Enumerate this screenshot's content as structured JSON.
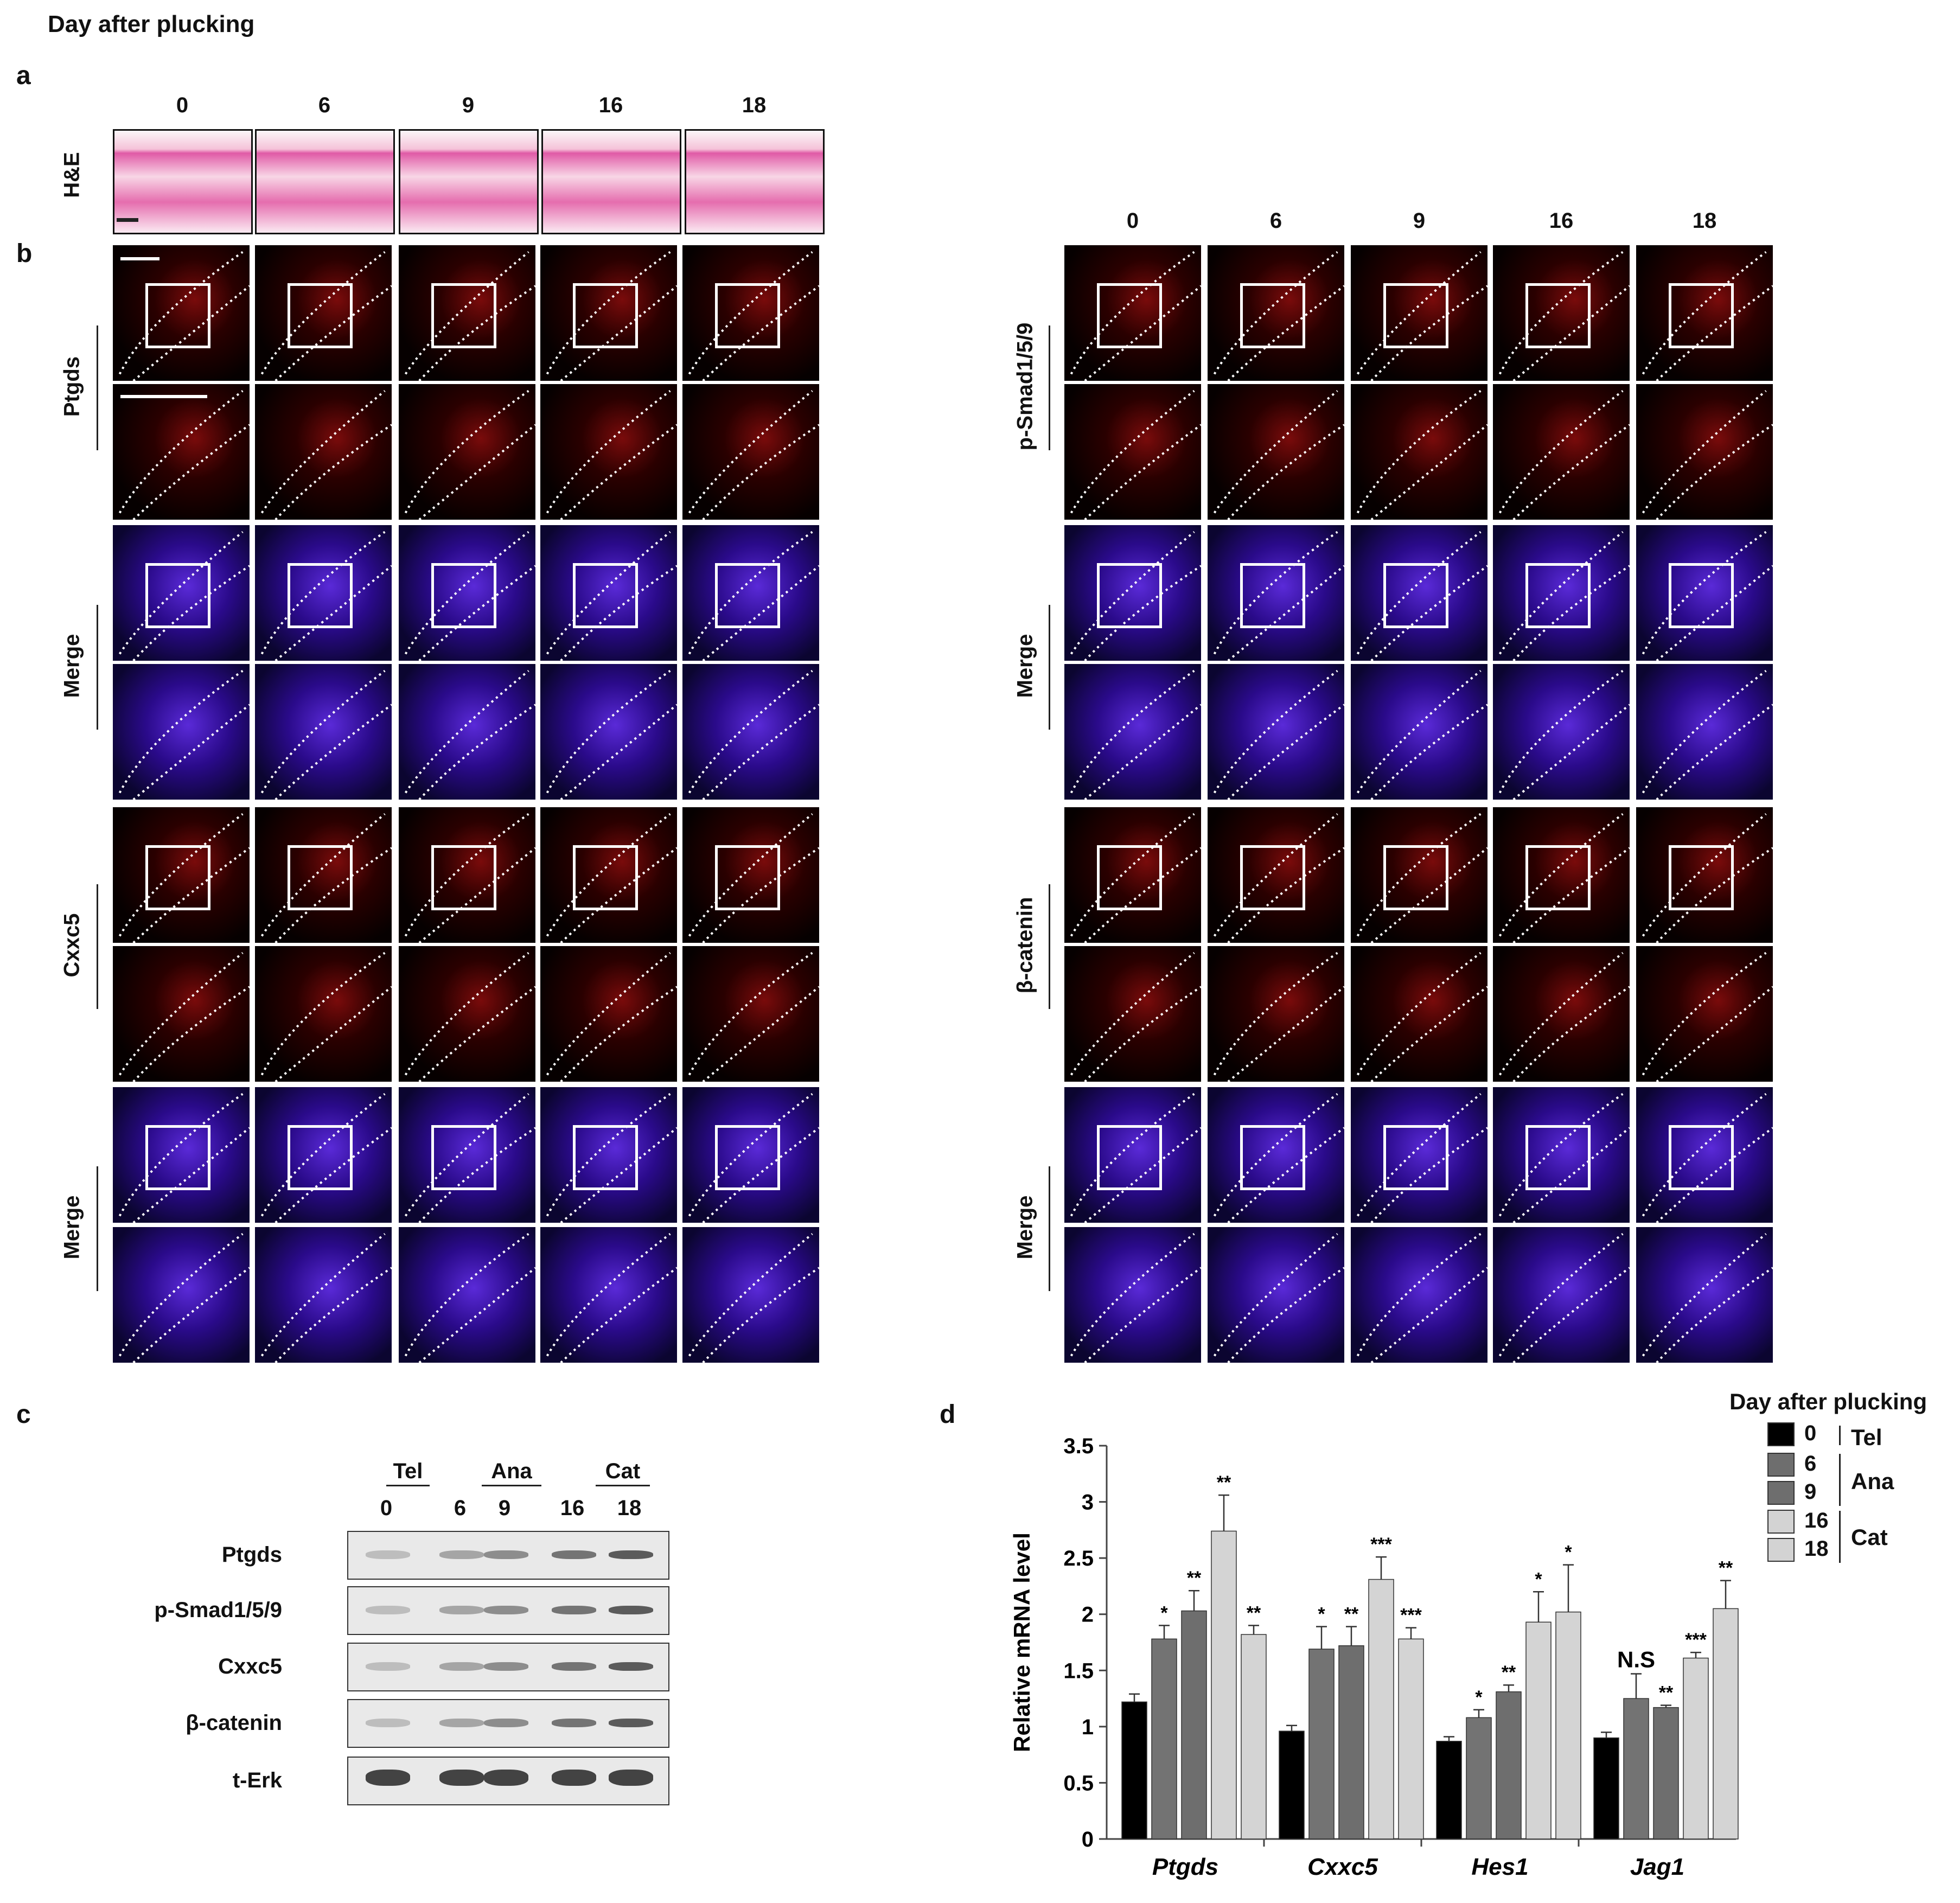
{
  "figure_title": "Day after plucking",
  "panels": {
    "a": {
      "letter": "a",
      "row_label": "H&E",
      "days": [
        "0",
        "6",
        "9",
        "16",
        "18"
      ]
    },
    "b": {
      "letter": "b",
      "days": [
        "0",
        "6",
        "9",
        "16",
        "18"
      ],
      "left_labels": [
        "Ptgds",
        "Merge",
        "Cxxc5",
        "Merge"
      ],
      "right_labels": [
        "p-Smad1/5/9",
        "Merge",
        "β-catenin",
        "Merge"
      ]
    },
    "c": {
      "letter": "c",
      "groups": [
        {
          "name": "Tel"
        },
        {
          "name": "Ana"
        },
        {
          "name": "Cat"
        }
      ],
      "lanes": [
        "0",
        "6",
        "9",
        "16",
        "18"
      ],
      "rows": [
        "Ptgds",
        "p-Smad1/5/9",
        "Cxxc5",
        "β-catenin",
        "t-Erk"
      ]
    },
    "d": {
      "letter": "d",
      "legend_title": "Day after plucking",
      "legend_items": [
        {
          "day": "0",
          "color": "#000000"
        },
        {
          "day": "6",
          "color": "#6e6e6e"
        },
        {
          "day": "9",
          "color": "#6e6e6e"
        },
        {
          "day": "16",
          "color": "#d3d3d3"
        },
        {
          "day": "18",
          "color": "#d3d3d3"
        }
      ],
      "legend_groups": [
        "Tel",
        "Ana",
        "Cat"
      ]
    }
  },
  "chart_data": {
    "type": "bar",
    "ylabel": "Relative mRNA level",
    "ylim": [
      0,
      3.5
    ],
    "yticks": [
      "0",
      "0.5",
      "1",
      "1.5",
      "2",
      "2.5",
      "3",
      "3.5"
    ],
    "categories": [
      "Ptgds",
      "Cxxc5",
      "Hes1",
      "Jag1"
    ],
    "series": [
      {
        "name": "0",
        "color": "#000000",
        "values": [
          1.22,
          0.96,
          0.87,
          0.9
        ],
        "errors": [
          0.07,
          0.05,
          0.04,
          0.05
        ],
        "sig": [
          "",
          "",
          "",
          ""
        ]
      },
      {
        "name": "6",
        "color": "#737373",
        "values": [
          1.78,
          1.69,
          1.08,
          1.25
        ],
        "errors": [
          0.12,
          0.2,
          0.07,
          0.22
        ],
        "sig": [
          "*",
          "*",
          "*",
          "N.S"
        ]
      },
      {
        "name": "9",
        "color": "#6e6e6e",
        "values": [
          2.03,
          1.72,
          1.31,
          1.17
        ],
        "errors": [
          0.18,
          0.17,
          0.06,
          0.02
        ],
        "sig": [
          "**",
          "**",
          "**",
          "**"
        ]
      },
      {
        "name": "16",
        "color": "#d4d4d4",
        "values": [
          2.74,
          2.31,
          1.93,
          1.61
        ],
        "errors": [
          0.32,
          0.2,
          0.27,
          0.05
        ],
        "sig": [
          "**",
          "***",
          "*",
          "***"
        ]
      },
      {
        "name": "18",
        "color": "#d4d4d4",
        "values": [
          1.82,
          1.78,
          2.02,
          2.05
        ],
        "errors": [
          0.08,
          0.1,
          0.42,
          0.25
        ],
        "sig": [
          "**",
          "***",
          "*",
          "**"
        ]
      }
    ]
  }
}
